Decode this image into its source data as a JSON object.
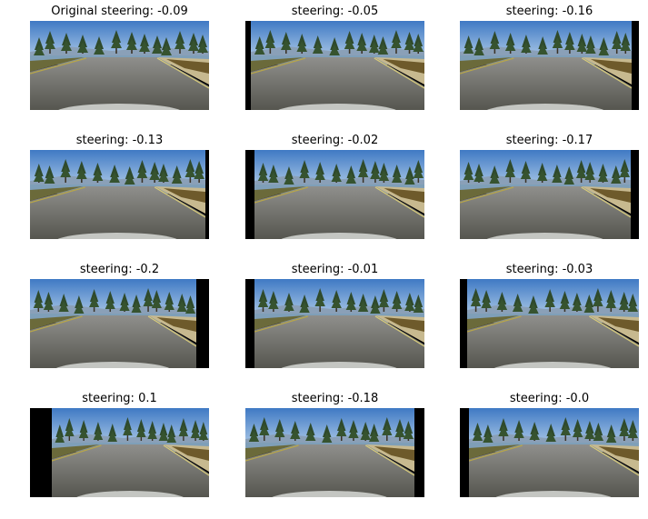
{
  "figure": {
    "panels": [
      {
        "title": "Original steering: -0.09",
        "steering": -0.09
      },
      {
        "title": "steering: -0.05",
        "steering": -0.05
      },
      {
        "title": "steering: -0.16",
        "steering": -0.16
      },
      {
        "title": "steering: -0.13",
        "steering": -0.13
      },
      {
        "title": "steering: -0.02",
        "steering": -0.02
      },
      {
        "title": "steering: -0.17",
        "steering": -0.17
      },
      {
        "title": "steering: -0.2",
        "steering": -0.2
      },
      {
        "title": "steering: -0.01",
        "steering": -0.01
      },
      {
        "title": "steering: -0.03",
        "steering": -0.03
      },
      {
        "title": "steering: 0.1",
        "steering": 0.1
      },
      {
        "title": "steering: -0.18",
        "steering": -0.18
      },
      {
        "title": "steering: -0.0",
        "steering": -0.0
      }
    ]
  }
}
